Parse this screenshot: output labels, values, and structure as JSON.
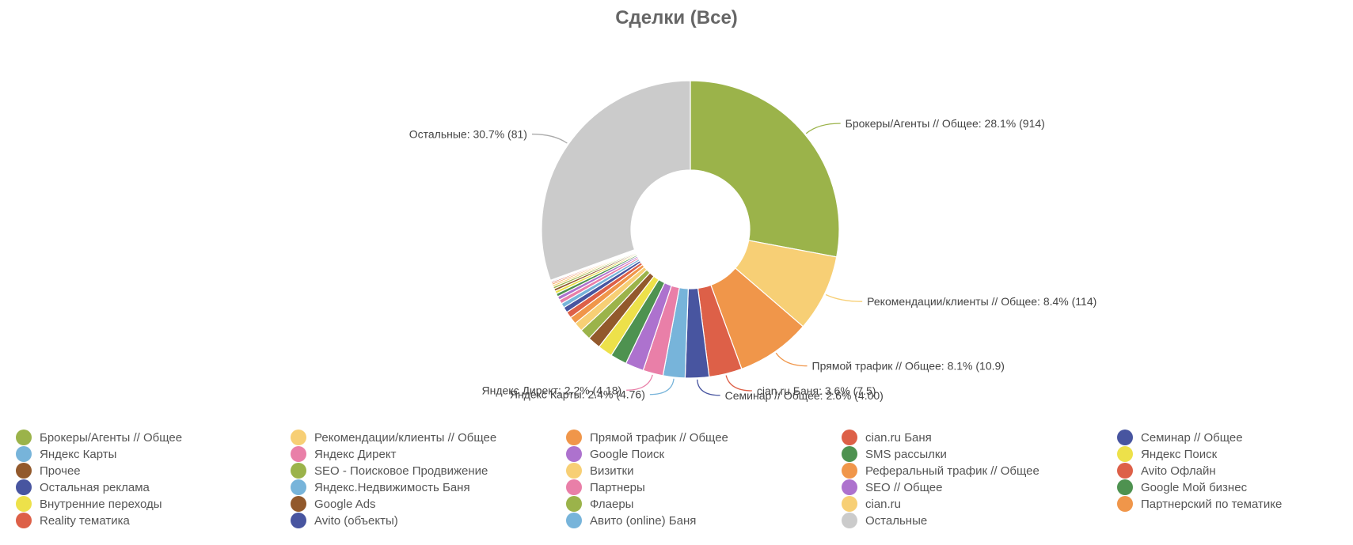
{
  "chart_data": {
    "type": "pie",
    "variant": "donut",
    "title": "Сделки (Все)",
    "slices": [
      {
        "name": "Брокеры/Агенты // Общее",
        "label": "Брокеры/Агенты // Общее: 28.1% (914)",
        "value": 28.1,
        "color": "#9BB34A"
      },
      {
        "name": "Рекомендации/клиенты // Общее",
        "label": "Рекомендации/клиенты // Общее: 8.4% (114)",
        "value": 8.4,
        "color": "#F7CF75"
      },
      {
        "name": "Прямой трафик // Общее",
        "label": "Прямой трафик // Общее: 8.1% (10.9)",
        "value": 8.1,
        "color": "#F0964A"
      },
      {
        "name": "cian.ru Баня",
        "label": "cian.ru Баня: 3.6% (7.5)",
        "value": 3.6,
        "color": "#DD6048"
      },
      {
        "name": "Семинар // Общее",
        "label": "Семинар // Общее: 2.6% (4.00)",
        "value": 2.6,
        "color": "#4855A0"
      },
      {
        "name": "Яндекс Карты",
        "label": "Яндекс Карты: 2.4% (4.76)",
        "value": 2.4,
        "color": "#77B4DA"
      },
      {
        "name": "Яндекс Директ",
        "label": "Яндекс Директ: 2.2% (4.18)",
        "value": 2.2,
        "color": "#E97FA8"
      },
      {
        "name": "Google Поиск",
        "value": 2.0,
        "color": "#AD72CE"
      },
      {
        "name": "SMS рассылки",
        "value": 1.8,
        "color": "#4E9250"
      },
      {
        "name": "Яндекс Поиск",
        "value": 1.6,
        "color": "#EDE14A"
      },
      {
        "name": "Прочее",
        "value": 1.4,
        "color": "#92592C"
      },
      {
        "name": "SEO - Поисковое Продвижение",
        "value": 1.2,
        "color": "#9BB34A"
      },
      {
        "name": "Визитки",
        "value": 1.0,
        "color": "#F7CF75"
      },
      {
        "name": "Реферальный трафик // Общее",
        "value": 0.8,
        "color": "#F0964A"
      },
      {
        "name": "Avito Офлайн",
        "value": 0.7,
        "color": "#DD6048"
      },
      {
        "name": "Остальная реклама",
        "value": 0.6,
        "color": "#4855A0"
      },
      {
        "name": "Яндекс.Недвижимость Баня",
        "value": 0.5,
        "color": "#77B4DA"
      },
      {
        "name": "Партнеры",
        "value": 0.45,
        "color": "#E97FA8"
      },
      {
        "name": "SEO // Общее",
        "value": 0.4,
        "color": "#AD72CE"
      },
      {
        "name": "Google Мой бизнес",
        "value": 0.35,
        "color": "#4E9250"
      },
      {
        "name": "Внутренние переходы",
        "value": 0.3,
        "color": "#EDE14A"
      },
      {
        "name": "Google Ads",
        "value": 0.27,
        "color": "#92592C"
      },
      {
        "name": "Флаеры",
        "value": 0.24,
        "color": "#9BB34A"
      },
      {
        "name": "cian.ru",
        "value": 0.21,
        "color": "#F7CF75"
      },
      {
        "name": "Партнерский по тематике",
        "value": 0.18,
        "color": "#F0964A"
      },
      {
        "name": "Reality тематика",
        "value": 0.15,
        "color": "#DD6048"
      },
      {
        "name": "Avito (объекты)",
        "value": 0.12,
        "color": "#4855A0"
      },
      {
        "name": "Авито (online) Баня",
        "value": 0.1,
        "color": "#77B4DA"
      },
      {
        "name": "Остальные",
        "label": "Остальные: 30.7% (81)",
        "value": 30.7,
        "color": "#CBCBCB"
      }
    ],
    "legend": {
      "placement": "bottom",
      "columns": 5,
      "items": [
        {
          "name": "Брокеры/Агенты // Общее",
          "color": "#9BB34A"
        },
        {
          "name": "Рекомендации/клиенты // Общее",
          "color": "#F7CF75"
        },
        {
          "name": "Прямой трафик // Общее",
          "color": "#F0964A"
        },
        {
          "name": "cian.ru Баня",
          "color": "#DD6048"
        },
        {
          "name": "Семинар // Общее",
          "color": "#4855A0"
        },
        {
          "name": "Яндекс Карты",
          "color": "#77B4DA"
        },
        {
          "name": "Яндекс Директ",
          "color": "#E97FA8"
        },
        {
          "name": "Google Поиск",
          "color": "#AD72CE"
        },
        {
          "name": "SMS рассылки",
          "color": "#4E9250"
        },
        {
          "name": "Яндекс Поиск",
          "color": "#EDE14A"
        },
        {
          "name": "Прочее",
          "color": "#92592C"
        },
        {
          "name": "SEO - Поисковое Продвижение",
          "color": "#9BB34A"
        },
        {
          "name": "Визитки",
          "color": "#F7CF75"
        },
        {
          "name": "Реферальный трафик // Общее",
          "color": "#F0964A"
        },
        {
          "name": "Avito Офлайн",
          "color": "#DD6048"
        },
        {
          "name": "Остальная реклама",
          "color": "#4855A0"
        },
        {
          "name": "Яндекс.Недвижимость Баня",
          "color": "#77B4DA"
        },
        {
          "name": "Партнеры",
          "color": "#E97FA8"
        },
        {
          "name": "SEO // Общее",
          "color": "#AD72CE"
        },
        {
          "name": "Google Мой бизнес",
          "color": "#4E9250"
        },
        {
          "name": "Внутренние переходы",
          "color": "#EDE14A"
        },
        {
          "name": "Google Ads",
          "color": "#92592C"
        },
        {
          "name": "Флаеры",
          "color": "#9BB34A"
        },
        {
          "name": "cian.ru",
          "color": "#F7CF75"
        },
        {
          "name": "Партнерский по тематике",
          "color": "#F0964A"
        },
        {
          "name": "Reality тематика",
          "color": "#DD6048"
        },
        {
          "name": "Avito (объекты)",
          "color": "#4855A0"
        },
        {
          "name": "Авито (online) Баня",
          "color": "#77B4DA"
        },
        {
          "name": "Остальные",
          "color": "#CBCBCB"
        }
      ]
    }
  }
}
